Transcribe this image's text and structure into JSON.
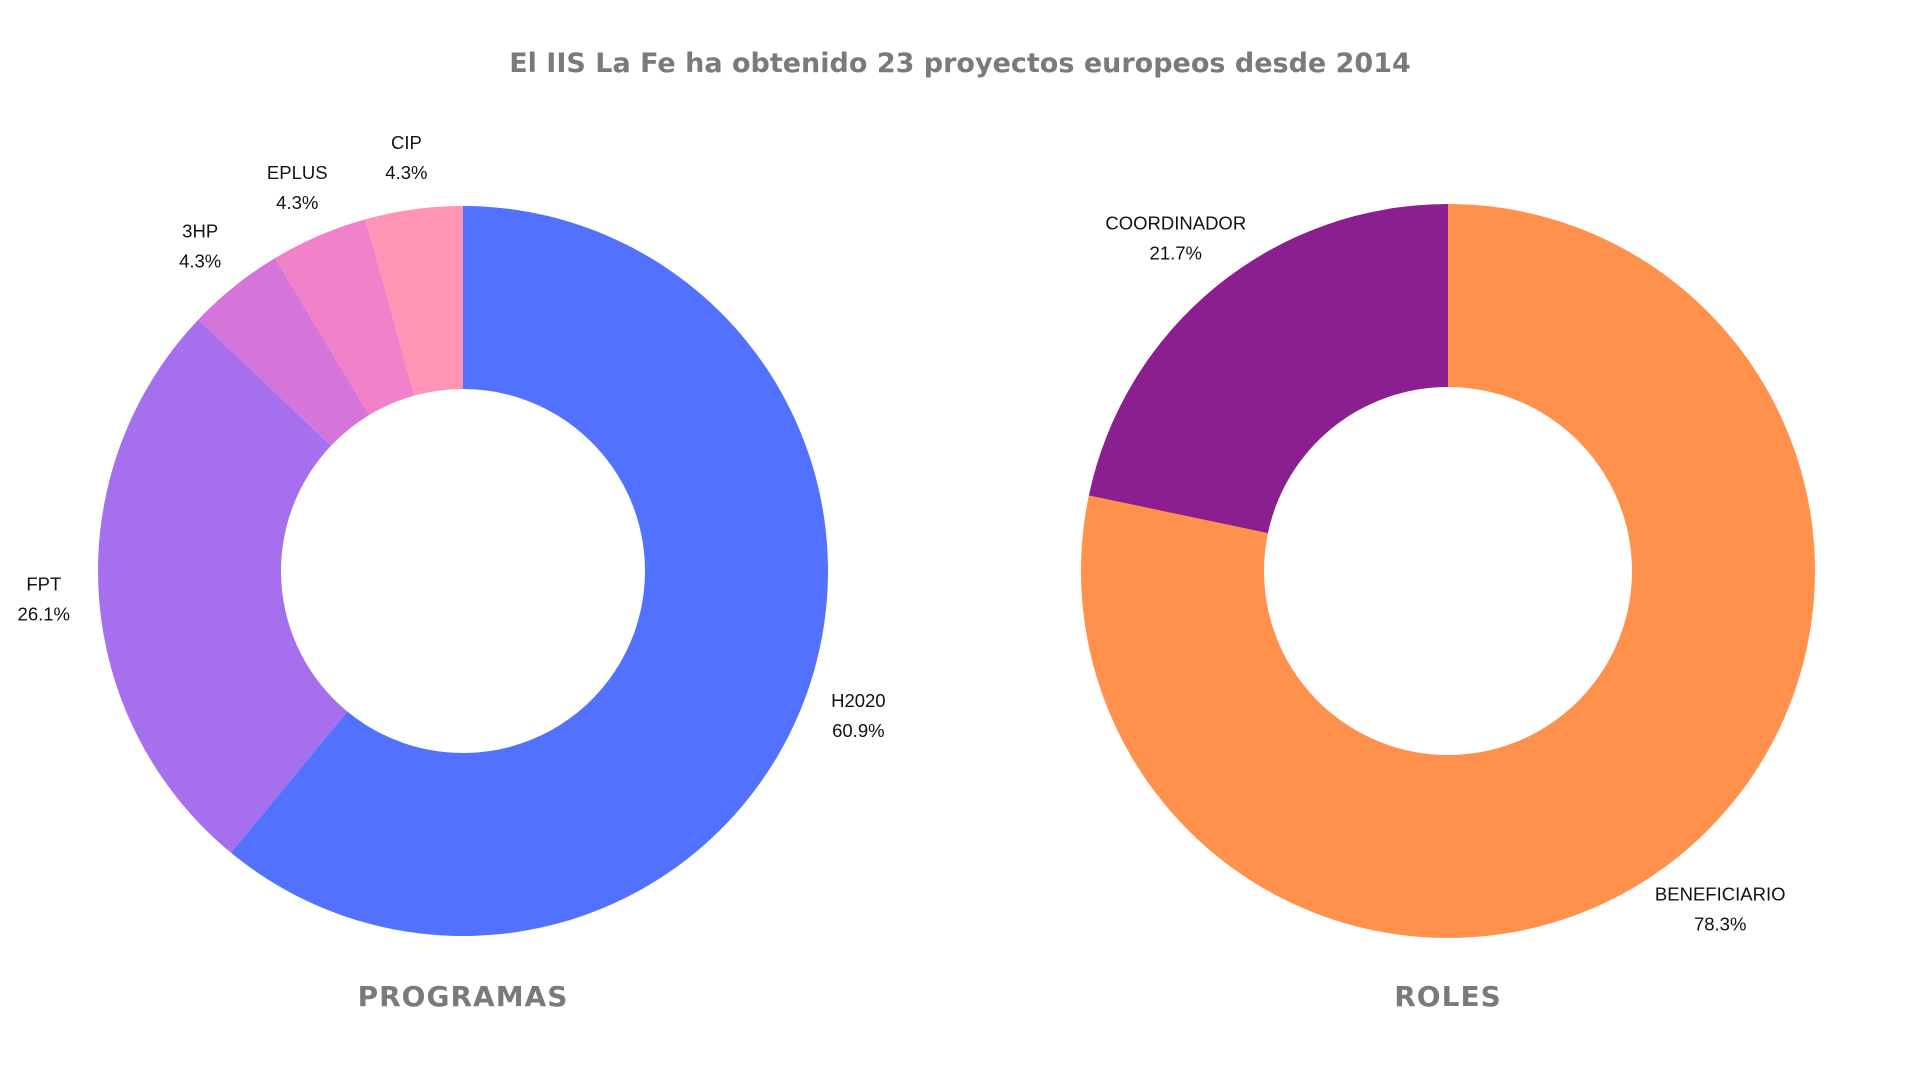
{
  "title": "El IIS La Fe ha obtenido 23 proyectos europeos desde 2014",
  "chart_data": [
    {
      "type": "pie",
      "variant": "donut",
      "caption": "PROGRAMAS",
      "labels": [
        "H2020",
        "FPT",
        "3HP",
        "EPLUS",
        "CIP"
      ],
      "values": [
        60.9,
        26.1,
        4.3,
        4.3,
        4.3
      ],
      "display": [
        "60.9%",
        "26.1%",
        "4.3%",
        "4.3%",
        "4.3%"
      ],
      "colors": [
        "#5271ff",
        "#a66fed",
        "#d574d9",
        "#f182c9",
        "#ff94b5"
      ],
      "start_angle_deg": 0,
      "direction": "clockwise"
    },
    {
      "type": "pie",
      "variant": "donut",
      "caption": "ROLES",
      "labels": [
        "BENEFICIARIO",
        "COORDINADOR"
      ],
      "values": [
        78.3,
        21.7
      ],
      "display": [
        "78.3%",
        "21.7%"
      ],
      "colors": [
        "#ff914d",
        "#8c1f8f"
      ],
      "start_angle_deg": 0,
      "direction": "clockwise"
    }
  ]
}
